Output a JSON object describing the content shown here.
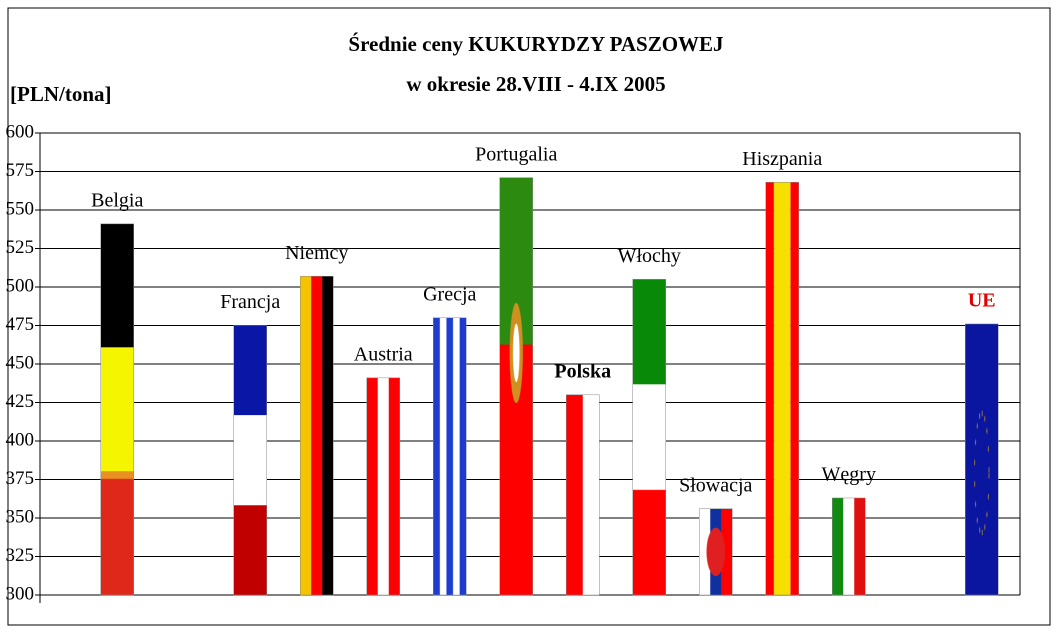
{
  "chart_data": {
    "type": "bar",
    "title": "Średnie ceny KUKURYDZY PASZOWEJ",
    "subtitle": "w okresie 28.VIII - 4.IX 2005",
    "y_label": "[PLN/tona]",
    "categories": [
      "Belgia",
      null,
      "Francja",
      "Niemcy",
      "Austria",
      "Grecja",
      "Portugalia",
      "Polska",
      "Włochy",
      "Słowacja",
      "Hiszpania",
      "Węgry",
      null,
      "UE"
    ],
    "values": [
      541,
      null,
      475,
      507,
      441,
      480,
      571,
      430,
      505,
      356,
      568,
      363,
      null,
      476
    ],
    "ylim": [
      300,
      600
    ],
    "yticks": [
      300,
      325,
      350,
      375,
      400,
      425,
      450,
      475,
      500,
      525,
      550,
      575,
      600
    ],
    "grid": true
  }
}
